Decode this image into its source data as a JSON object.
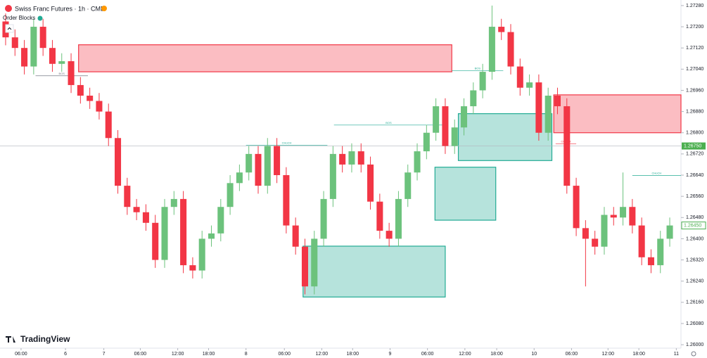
{
  "chart_data": {
    "type": "candlestick",
    "title": "Swiss Franc Futures · 1h · CME",
    "indicator": "Order Blocks",
    "brand": "TradingView",
    "up_color": "#6cc27c",
    "down_color": "#f23645",
    "open": [
      1.2722,
      1.2716,
      1.2712,
      1.2705,
      1.272,
      1.2712,
      1.2706,
      1.2707,
      1.2698,
      1.2694,
      1.2692,
      1.2688,
      1.2678,
      1.266,
      1.2652,
      1.265,
      1.2646,
      1.2632,
      1.2652,
      1.2655,
      1.263,
      1.2628,
      1.264,
      1.2642,
      1.2652,
      1.2661,
      1.2665,
      1.2672,
      1.266,
      1.2675,
      1.2664,
      1.2645,
      1.2637,
      1.2622,
      1.264,
      1.2655,
      1.2672,
      1.2668,
      1.2673,
      1.2668,
      1.2654,
      1.2643,
      1.264,
      1.2655,
      1.2665,
      1.2673,
      1.268,
      1.269,
      1.2675,
      1.2682,
      1.269,
      1.2696,
      1.2703,
      1.272,
      1.2718,
      1.2705,
      1.2697,
      1.2699,
      1.268,
      1.2694,
      1.269,
      1.266,
      1.2644,
      1.264,
      1.2637,
      1.2649,
      1.2648,
      1.2652,
      1.2645,
      1.2633,
      1.263,
      1.264
    ],
    "high": [
      1.2725,
      1.2719,
      1.2715,
      1.2723,
      1.2723,
      1.2715,
      1.271,
      1.271,
      1.2701,
      1.2697,
      1.2695,
      1.2691,
      1.2681,
      1.2663,
      1.2655,
      1.2653,
      1.2649,
      1.2655,
      1.2658,
      1.2658,
      1.2633,
      1.2643,
      1.2645,
      1.2655,
      1.2664,
      1.2668,
      1.2675,
      1.2675,
      1.2678,
      1.2678,
      1.2667,
      1.2648,
      1.264,
      1.2643,
      1.2658,
      1.2675,
      1.2675,
      1.2676,
      1.2676,
      1.2671,
      1.2657,
      1.2646,
      1.2658,
      1.2668,
      1.2676,
      1.2683,
      1.2693,
      1.2693,
      1.2685,
      1.2693,
      1.2699,
      1.2706,
      1.2728,
      1.2723,
      1.2721,
      1.2708,
      1.2702,
      1.2702,
      1.2697,
      1.2697,
      1.2693,
      1.2663,
      1.2647,
      1.2643,
      1.2652,
      1.2652,
      1.2665,
      1.2655,
      1.2648,
      1.2636,
      1.2643,
      1.2648
    ],
    "low": [
      1.2713,
      1.2709,
      1.2702,
      1.2702,
      1.2709,
      1.2703,
      1.2703,
      1.2695,
      1.2691,
      1.2689,
      1.2685,
      1.2675,
      1.2657,
      1.2649,
      1.2647,
      1.2643,
      1.2629,
      1.2629,
      1.2649,
      1.2627,
      1.2625,
      1.2625,
      1.2637,
      1.2639,
      1.2649,
      1.2658,
      1.2662,
      1.2657,
      1.2657,
      1.2661,
      1.2642,
      1.2634,
      1.2619,
      1.2619,
      1.2637,
      1.2652,
      1.2665,
      1.2665,
      1.2665,
      1.2651,
      1.264,
      1.2637,
      1.2637,
      1.2652,
      1.2662,
      1.267,
      1.2677,
      1.2672,
      1.2672,
      1.2679,
      1.2687,
      1.2693,
      1.27,
      1.2715,
      1.2702,
      1.2694,
      1.2694,
      1.2677,
      1.2677,
      1.2687,
      1.2657,
      1.2641,
      1.2622,
      1.2634,
      1.2634,
      1.2645,
      1.2645,
      1.2642,
      1.263,
      1.2627,
      1.2627,
      1.2637
    ],
    "close": [
      1.2716,
      1.2712,
      1.2705,
      1.272,
      1.2712,
      1.2706,
      1.2707,
      1.2698,
      1.2694,
      1.2692,
      1.2688,
      1.2678,
      1.266,
      1.2652,
      1.265,
      1.2646,
      1.2632,
      1.2652,
      1.2655,
      1.263,
      1.2628,
      1.264,
      1.2642,
      1.2652,
      1.2661,
      1.2665,
      1.2672,
      1.266,
      1.2675,
      1.2664,
      1.2645,
      1.2637,
      1.2622,
      1.264,
      1.2655,
      1.2672,
      1.2668,
      1.2673,
      1.2668,
      1.2654,
      1.2643,
      1.264,
      1.2655,
      1.2665,
      1.2673,
      1.268,
      1.269,
      1.2675,
      1.2682,
      1.269,
      1.2696,
      1.2703,
      1.272,
      1.2718,
      1.2705,
      1.2697,
      1.2699,
      1.268,
      1.2694,
      1.269,
      1.266,
      1.2644,
      1.264,
      1.2637,
      1.2649,
      1.2648,
      1.2652,
      1.2645,
      1.2633,
      1.263,
      1.264,
      1.2645
    ],
    "zones": [
      {
        "top": 1.27132,
        "bottom": 1.2703,
        "start": 7.8,
        "end": 47.7,
        "color": "#f23645"
      },
      {
        "top": 1.26943,
        "bottom": 1.268,
        "start": 58.6,
        "end": 72.2,
        "color": "#f23645"
      },
      {
        "top": 1.26872,
        "bottom": 1.26695,
        "start": 48.4,
        "end": 58.4,
        "color": "#22ab94"
      },
      {
        "top": 1.2667,
        "bottom": 1.2647,
        "start": 45.9,
        "end": 52.4,
        "color": "#22ab94"
      },
      {
        "top": 1.26372,
        "bottom": 1.2618,
        "start": 31.8,
        "end": 47,
        "color": "#22ab94"
      }
    ],
    "annotations": [
      {
        "text": "BOS",
        "price": 1.27015,
        "start": 3.2,
        "end": 8.8,
        "color": "#787b86"
      },
      {
        "text": "BOS",
        "price": 1.27034,
        "start": 47.7,
        "end": 53.2,
        "color": "#22ab94"
      },
      {
        "text": "BOS",
        "price": 1.26829,
        "start": 35.1,
        "end": 46.8,
        "color": "#22ab94"
      },
      {
        "text": "CHoCH",
        "price": 1.26753,
        "start": 25.7,
        "end": 34.4,
        "color": "#22ab94"
      },
      {
        "text": "CHoCH",
        "price": 1.26758,
        "start": 58.8,
        "end": 61,
        "color": "#f23645"
      },
      {
        "text": "CHoCH",
        "price": 1.26639,
        "start": 67,
        "end": 72.2,
        "color": "#22ab94"
      }
    ],
    "price_line": {
      "value": 1.2675,
      "label": "1.26750"
    },
    "last_price": {
      "value": 1.2645,
      "label": "1.26450"
    },
    "xlim": [
      -0.6,
      72.2
    ],
    "ylim": [
      1.25987,
      1.27301
    ],
    "xticks": [
      {
        "value": 1.65,
        "label": "06:00"
      },
      {
        "value": 6.4,
        "label": "6"
      },
      {
        "value": 10.5,
        "label": "7"
      },
      {
        "value": 14.4,
        "label": "06:00"
      },
      {
        "value": 18.4,
        "label": "12:00"
      },
      {
        "value": 21.7,
        "label": "18:00"
      },
      {
        "value": 25.7,
        "label": "8"
      },
      {
        "value": 29.8,
        "label": "06:00"
      },
      {
        "value": 33.8,
        "label": "12:00"
      },
      {
        "value": 37.1,
        "label": "18:00"
      },
      {
        "value": 41.1,
        "label": "9"
      },
      {
        "value": 45.1,
        "label": "06:00"
      },
      {
        "value": 49.1,
        "label": "12:00"
      },
      {
        "value": 52.5,
        "label": "18:00"
      },
      {
        "value": 56.5,
        "label": "10"
      },
      {
        "value": 60.5,
        "label": "06:00"
      },
      {
        "value": 64.4,
        "label": "12:00"
      },
      {
        "value": 67.7,
        "label": "18:00"
      },
      {
        "value": 71.7,
        "label": "11"
      }
    ],
    "yticks": [
      {
        "value": 1.2728,
        "label": "1.27280"
      },
      {
        "value": 1.272,
        "label": "1.27200"
      },
      {
        "value": 1.2712,
        "label": "1.27120"
      },
      {
        "value": 1.2704,
        "label": "1.27040"
      },
      {
        "value": 1.2696,
        "label": "1.26960"
      },
      {
        "value": 1.2688,
        "label": "1.26880"
      },
      {
        "value": 1.268,
        "label": "1.26800"
      },
      {
        "value": 1.2672,
        "label": "1.26720"
      },
      {
        "value": 1.2664,
        "label": "1.26640"
      },
      {
        "value": 1.2656,
        "label": "1.26560"
      },
      {
        "value": 1.2648,
        "label": "1.26480"
      },
      {
        "value": 1.264,
        "label": "1.26400"
      },
      {
        "value": 1.2632,
        "label": "1.26320"
      },
      {
        "value": 1.2624,
        "label": "1.26240"
      },
      {
        "value": 1.2616,
        "label": "1.26160"
      },
      {
        "value": 1.2608,
        "label": "1.26080"
      },
      {
        "value": 1.26,
        "label": "1.26000"
      }
    ]
  }
}
